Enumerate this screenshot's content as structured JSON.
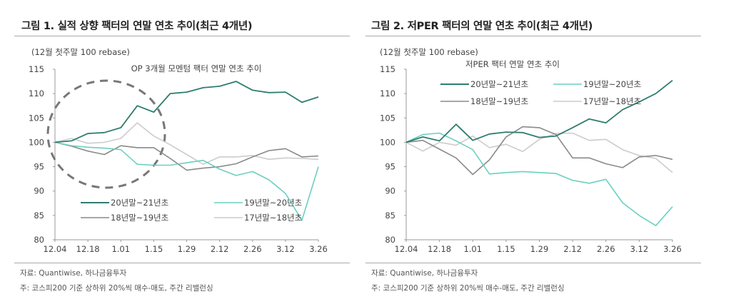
{
  "chart_data": [
    {
      "type": "line",
      "figure_title": "그림 1. 실적 상향 팩터의 연말 연초 추이(최근 4개년)",
      "title": "OP 3개월 모멘텀 팩터 연말 연초 추이",
      "unit_label": "(12월 첫주말 100 rebase)",
      "xlabel": "",
      "ylabel": "",
      "ylim": [
        80,
        115
      ],
      "yticks": [
        80,
        85,
        90,
        95,
        100,
        105,
        110,
        115
      ],
      "x": [
        "12.04",
        "12.11",
        "12.18",
        "12.25",
        "1.01",
        "1.08",
        "1.15",
        "1.22",
        "1.29",
        "2.05",
        "2.12",
        "2.19",
        "2.26",
        "3.05",
        "3.12",
        "3.19",
        "3.26"
      ],
      "xtick_labels": [
        "12.04",
        "12.18",
        "1.01",
        "1.15",
        "1.29",
        "2.12",
        "2.26",
        "3.12",
        "3.26"
      ],
      "grid": false,
      "legend_position": "bottom-center",
      "annotation": "dashed circle highlighting year-end period (12.04–1.15)",
      "series": [
        {
          "name": "20년말~21년초",
          "color": "#2e7d6e",
          "values": [
            100,
            100.3,
            101.8,
            102,
            103,
            107.5,
            106.2,
            110,
            110.3,
            111.2,
            111.5,
            112.5,
            110.7,
            110.2,
            110.3,
            108.2,
            109.3
          ]
        },
        {
          "name": "19년말~20년초",
          "color": "#6ccfc0",
          "values": [
            100,
            99.3,
            99,
            98.8,
            98.5,
            95.5,
            95.3,
            95.3,
            95.8,
            96.3,
            94.5,
            93.2,
            94,
            92.3,
            89.5,
            84,
            95
          ]
        },
        {
          "name": "18년말~19년초",
          "color": "#8a8a8a",
          "values": [
            100,
            99.2,
            98.2,
            97.5,
            99.3,
            98.9,
            98.9,
            96.7,
            94.3,
            94.7,
            95,
            95.6,
            97,
            98.3,
            98.7,
            97,
            97.2
          ]
        },
        {
          "name": "17년말~18년초",
          "color": "#cccccc",
          "values": [
            100,
            100.8,
            99.8,
            100,
            100.8,
            104,
            101.3,
            99.5,
            97.5,
            95.5,
            97,
            97,
            97.3,
            96.5,
            96.8,
            96.7,
            96.5
          ]
        }
      ],
      "source": "자료: Quantiwise, 하나금융투자",
      "note": "주: 코스피200 기준 상하위 20%씩 매수-매도, 주간 리밸런싱"
    },
    {
      "type": "line",
      "figure_title": "그림 2. 저PER 팩터의 연말 연초 추이(최근 4개년)",
      "title": "저PER 팩터 연말 연초 추이",
      "unit_label": "(12월 첫주말 100 rebase)",
      "xlabel": "",
      "ylabel": "",
      "ylim": [
        80,
        115
      ],
      "yticks": [
        80,
        85,
        90,
        95,
        100,
        105,
        110,
        115
      ],
      "x": [
        "12.04",
        "12.11",
        "12.18",
        "12.25",
        "1.01",
        "1.08",
        "1.15",
        "1.22",
        "1.29",
        "2.05",
        "2.12",
        "2.19",
        "2.26",
        "3.05",
        "3.12",
        "3.19",
        "3.26"
      ],
      "xtick_labels": [
        "12.04",
        "12.18",
        "1.01",
        "1.15",
        "1.29",
        "2.12",
        "2.26",
        "3.12",
        "3.26"
      ],
      "grid": false,
      "legend_position": "top-center",
      "series": [
        {
          "name": "20년말~21년초",
          "color": "#2e7d6e",
          "values": [
            100,
            101.1,
            100.3,
            103.7,
            100.4,
            101.7,
            102.1,
            102,
            101,
            101.3,
            103,
            104.8,
            104,
            106.7,
            108.3,
            110,
            112.7
          ]
        },
        {
          "name": "19년말~20년초",
          "color": "#6ccfc0",
          "values": [
            100,
            101.6,
            101.9,
            100.3,
            98.5,
            93.5,
            93.8,
            94,
            93.8,
            93.6,
            92.2,
            91.6,
            92.4,
            87.6,
            85,
            82.9,
            86.8
          ]
        },
        {
          "name": "18년말~19년초",
          "color": "#8a8a8a",
          "values": [
            100,
            100.4,
            98.6,
            96.8,
            93.4,
            96.4,
            101.1,
            103.2,
            103,
            101.6,
            96.8,
            96.8,
            95.6,
            94.8,
            97,
            97.3,
            96.5
          ]
        },
        {
          "name": "17년말~18년초",
          "color": "#cccccc",
          "values": [
            100,
            98.2,
            100,
            99.4,
            101.3,
            98.9,
            99.6,
            98.1,
            100.6,
            101.8,
            101.9,
            100.4,
            100.6,
            98.5,
            97.3,
            96.7,
            93.8
          ]
        }
      ],
      "source": "자료: Quantiwise, 하나금융투자",
      "note": "주: 코스피200 기준 상하위 20%씩 매수-매도, 주간 리밸런싱"
    }
  ]
}
